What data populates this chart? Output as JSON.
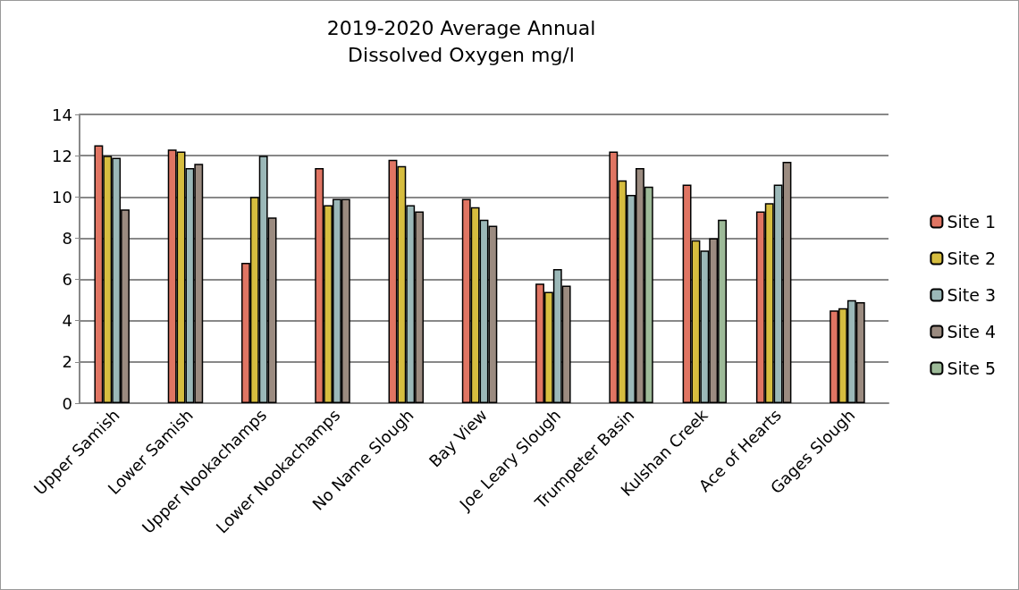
{
  "chart_data": {
    "type": "bar",
    "title": "2019-2020 Average Annual\nDissolved Oxygen mg/l",
    "categories": [
      "Upper Samish",
      "Lower Samish",
      "Upper Nookachamps",
      "Lower Nookachamps",
      "No Name Slough",
      "Bay View",
      "Joe Leary Slough",
      "Trumpeter Basin",
      "Kulshan Creek",
      "Ace of Hearts",
      "Gages Slough"
    ],
    "series": [
      {
        "name": "Site 1",
        "color": "#e07563",
        "values": [
          12.5,
          12.3,
          6.8,
          11.4,
          11.8,
          9.9,
          5.8,
          12.2,
          10.6,
          9.3,
          4.5
        ]
      },
      {
        "name": "Site 2",
        "color": "#d6bd3f",
        "values": [
          12.0,
          12.2,
          10.0,
          9.6,
          11.5,
          9.5,
          5.4,
          10.8,
          7.9,
          9.7,
          4.6
        ]
      },
      {
        "name": "Site 3",
        "color": "#9bb8b8",
        "values": [
          11.9,
          11.4,
          12.0,
          9.9,
          9.6,
          8.9,
          6.5,
          10.1,
          7.4,
          10.6,
          5.0
        ]
      },
      {
        "name": "Site 4",
        "color": "#9b8b80",
        "values": [
          9.4,
          11.6,
          9.0,
          9.9,
          9.3,
          8.6,
          5.7,
          11.4,
          8.0,
          11.7,
          4.9
        ]
      },
      {
        "name": "Site 5",
        "color": "#9dba98",
        "values": [
          null,
          null,
          null,
          null,
          null,
          null,
          null,
          10.5,
          8.9,
          null,
          null
        ]
      }
    ],
    "ylim": [
      0,
      14
    ],
    "yticks": [
      0,
      2,
      4,
      6,
      8,
      10,
      12,
      14
    ],
    "grid": "y",
    "legend": "right"
  }
}
